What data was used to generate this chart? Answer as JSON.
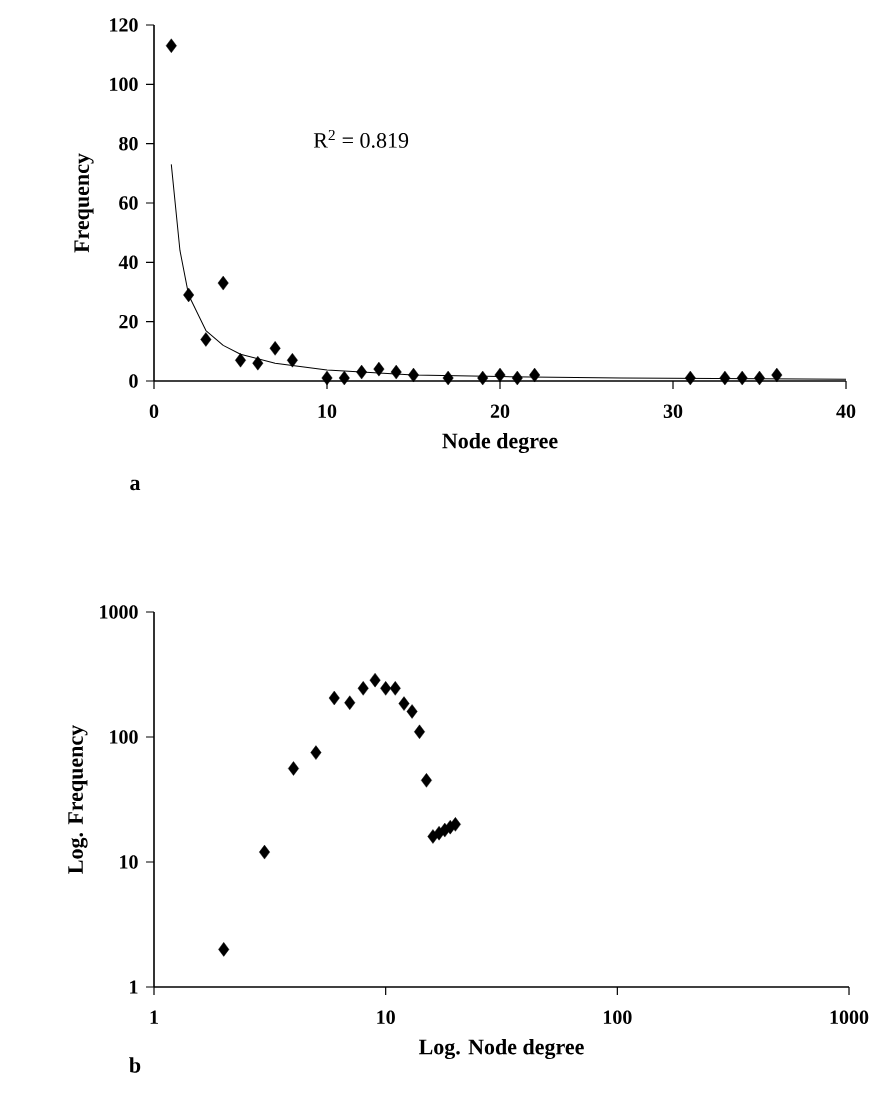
{
  "chart_data": [
    {
      "type": "scatter",
      "xlabel": "Node degree",
      "ylabel": "Frequency",
      "xlim": [
        0,
        40
      ],
      "ylim": [
        0,
        120
      ],
      "xticks": [
        0,
        10,
        20,
        30,
        40
      ],
      "yticks": [
        0,
        20,
        40,
        60,
        80,
        100,
        120
      ],
      "marker": "diamond",
      "grid": false,
      "annotations": [
        "R$^{2}$ = 0.819",
        "a"
      ],
      "series": [
        {
          "color": "#000000",
          "x": [
            1,
            2,
            3,
            4,
            5,
            6,
            7,
            8,
            10,
            11,
            12,
            13,
            14,
            15,
            17,
            19,
            20,
            21,
            22,
            31,
            33,
            34,
            35,
            36
          ],
          "values": [
            113,
            29,
            14,
            33,
            7,
            6,
            11,
            7,
            1,
            1,
            3,
            4,
            3,
            2,
            1,
            1,
            2,
            1,
            2,
            1,
            1,
            1,
            1,
            2
          ]
        },
        {
          "type": "line",
          "color": "#000000",
          "marker": "none",
          "line_style": "solid",
          "x": [
            1,
            1.5,
            2,
            3,
            4,
            5,
            7,
            10,
            15,
            20,
            27,
            40
          ],
          "values": [
            73,
            44,
            29,
            17,
            12,
            9,
            6,
            3.7,
            2,
            1.5,
            1,
            0.6
          ]
        }
      ]
    },
    {
      "type": "scatter",
      "xlabel": "Log.  Node degree",
      "ylabel": "Log. Frequency",
      "log": "xy",
      "xlim": [
        1,
        1000
      ],
      "ylim": [
        1,
        1000
      ],
      "xticks": [
        1,
        10,
        100,
        1000
      ],
      "yticks": [
        1,
        10,
        100,
        1000
      ],
      "marker": "diamond",
      "grid": false,
      "annotations": [
        "b"
      ],
      "series": [
        {
          "color": "#000000",
          "x": [
            2,
            3,
            4,
            5,
            6,
            7,
            8,
            9,
            10,
            11,
            12,
            13,
            14,
            15,
            16,
            17,
            18,
            19,
            20
          ],
          "values": [
            2,
            12,
            56,
            75,
            205,
            188,
            245,
            285,
            245,
            245,
            185,
            160,
            110,
            45,
            16,
            17,
            18,
            19,
            20
          ]
        }
      ]
    }
  ]
}
